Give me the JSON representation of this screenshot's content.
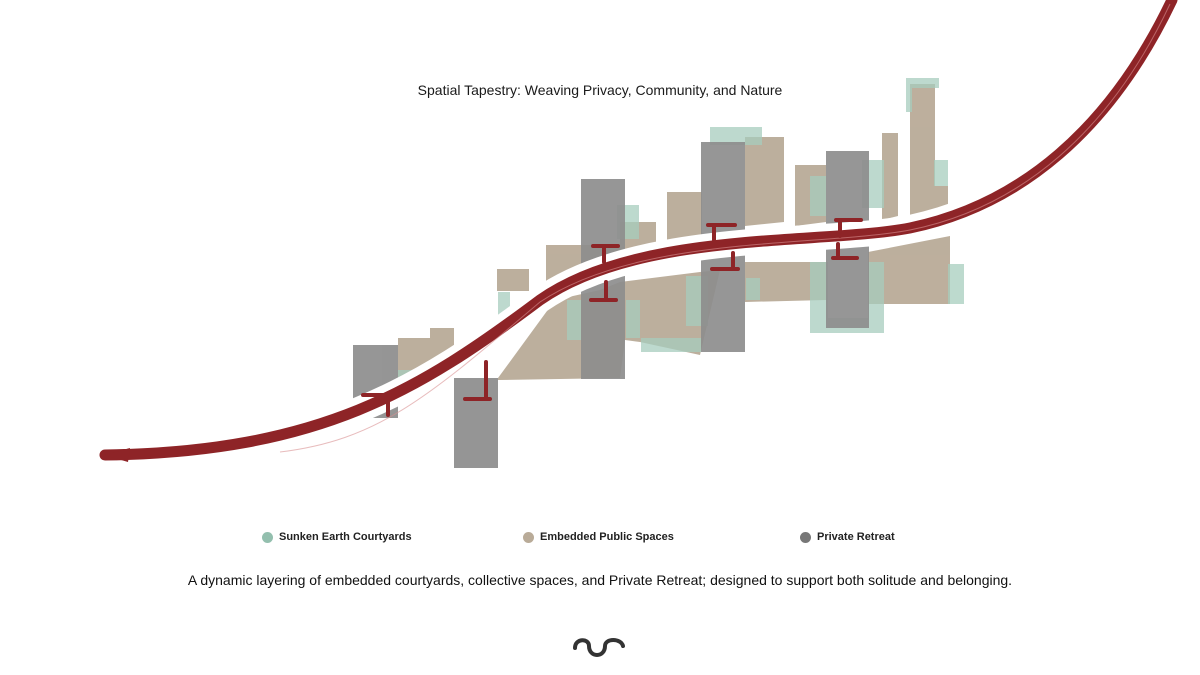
{
  "title": "Spatial Tapestry: Weaving Privacy, Community, and Nature",
  "legend": [
    {
      "label": "Sunken Earth Courtyards",
      "color": "#93bfae"
    },
    {
      "label": "Embedded Public Spaces",
      "color": "#b9ab98"
    },
    {
      "label": "Private Retreat",
      "color": "#777777"
    }
  ],
  "caption": "A dynamic layering of embedded courtyards, collective spaces, and Private Retreat; designed to support both solitude and belonging.",
  "colors": {
    "path": "#8e2427",
    "public": "#b9ab98",
    "courtyard": "#a7cdbe",
    "private": "#8d8d8d"
  },
  "footer_icon": "wave-icon"
}
